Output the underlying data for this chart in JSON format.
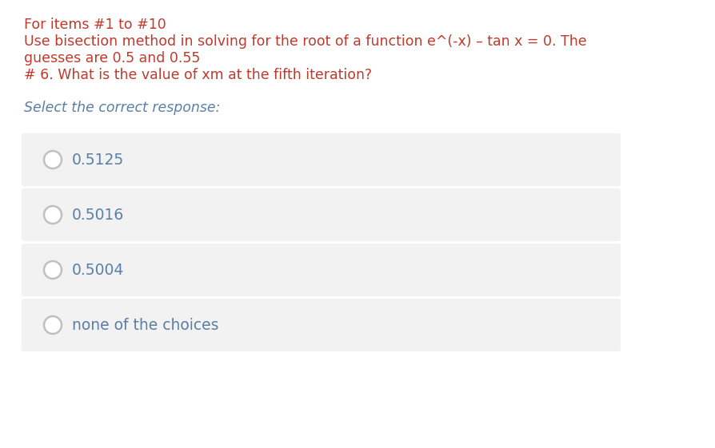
{
  "bg_color": "#ffffff",
  "header_color": "#c0392b",
  "choice_text_color": "#5b7fa6",
  "prompt_color": "#5b7fa6",
  "header_line1": "For items #1 to #10",
  "header_line2": "Use bisection method in solving for the root of a function e^(-x) – tan x = 0. The",
  "header_line3": "guesses are 0.5 and 0.55",
  "header_line4": "# 6. What is the value of xm at the fifth iteration?",
  "prompt": "Select the correct response:",
  "choices": [
    "0.5125",
    "0.5016",
    "0.5004",
    "none of the choices"
  ],
  "choice_bg": "#f2f2f2",
  "radio_edge_color": "#c0c0c0",
  "radio_face_color": "#ffffff",
  "header_fontsize": 12.5,
  "prompt_fontsize": 12.5,
  "choice_fontsize": 13.5,
  "fig_width": 8.95,
  "fig_height": 5.61,
  "dpi": 100
}
